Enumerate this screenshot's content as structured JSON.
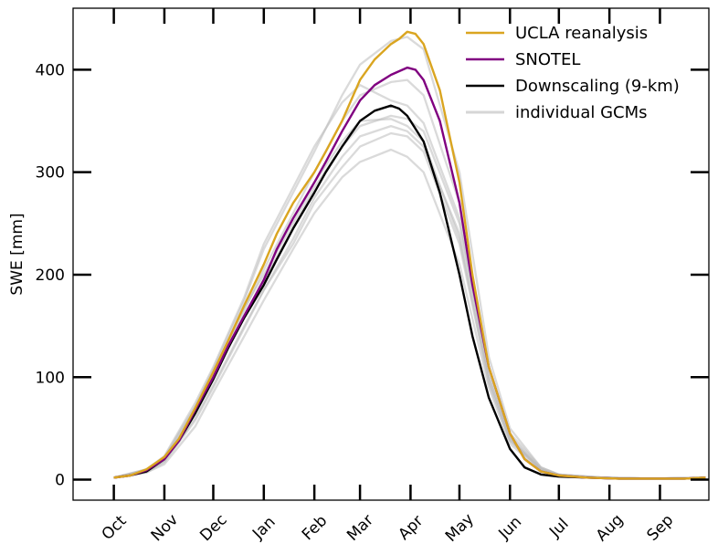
{
  "chart_data": {
    "type": "line",
    "title": "",
    "xlabel": "",
    "ylabel": "SWE [mm]",
    "ylim": [
      -20,
      460
    ],
    "yticks": [
      0,
      100,
      200,
      300,
      400
    ],
    "ytick_labels": [
      "0",
      "100",
      "200",
      "300",
      "400"
    ],
    "x_unit": "day of water year (Oct 1 = 0)",
    "xlim": [
      -25,
      365
    ],
    "xticks": [
      0,
      31,
      61,
      92,
      123,
      151,
      182,
      212,
      243,
      273,
      304,
      335
    ],
    "xtick_labels": [
      "Oct",
      "Nov",
      "Dec",
      "Jan",
      "Feb",
      "Mar",
      "Apr",
      "May",
      "Jun",
      "Jul",
      "Aug",
      "Sep"
    ],
    "grid": false,
    "legend_position": "top-right",
    "colors": {
      "ucla": "#DAA520",
      "snotel": "#800080",
      "downscaling": "#000000",
      "gcm": "#BBBBBB"
    },
    "series": [
      {
        "name": "UCLA reanalysis",
        "color_key": "ucla",
        "x": [
          0,
          10,
          20,
          31,
          40,
          50,
          61,
          70,
          80,
          92,
          100,
          110,
          123,
          130,
          140,
          151,
          160,
          170,
          175,
          180,
          185,
          190,
          200,
          212,
          220,
          230,
          243,
          252,
          262,
          273,
          290,
          310,
          330,
          350,
          363
        ],
        "values": [
          2,
          4,
          10,
          22,
          40,
          70,
          105,
          135,
          170,
          210,
          240,
          270,
          300,
          320,
          350,
          390,
          410,
          425,
          430,
          437,
          435,
          425,
          380,
          290,
          200,
          110,
          45,
          20,
          8,
          4,
          2,
          1,
          1,
          1,
          2
        ]
      },
      {
        "name": "SNOTEL",
        "color_key": "snotel",
        "x": [
          0,
          10,
          20,
          31,
          40,
          50,
          61,
          70,
          80,
          92,
          100,
          110,
          123,
          130,
          140,
          151,
          160,
          170,
          180,
          185,
          190,
          200,
          212,
          220,
          230,
          243,
          252,
          262,
          273,
          290,
          310,
          330,
          350,
          363
        ],
        "values": [
          2,
          4,
          9,
          20,
          38,
          68,
          100,
          130,
          160,
          195,
          225,
          255,
          290,
          310,
          340,
          370,
          385,
          395,
          402,
          400,
          390,
          350,
          270,
          190,
          110,
          45,
          20,
          8,
          4,
          2,
          1,
          1,
          1,
          2
        ]
      },
      {
        "name": "Downscaling (9-km)",
        "color_key": "downscaling",
        "x": [
          0,
          10,
          20,
          31,
          40,
          50,
          61,
          70,
          80,
          92,
          100,
          110,
          123,
          130,
          140,
          151,
          160,
          170,
          175,
          180,
          190,
          200,
          212,
          220,
          230,
          243,
          252,
          262,
          273,
          290,
          310,
          330,
          350,
          363
        ],
        "values": [
          2,
          4,
          8,
          20,
          38,
          65,
          98,
          128,
          158,
          190,
          215,
          245,
          280,
          300,
          325,
          350,
          360,
          365,
          362,
          355,
          330,
          280,
          200,
          140,
          80,
          30,
          12,
          5,
          3,
          2,
          1,
          1,
          1,
          2
        ]
      },
      {
        "name": "individual GCMs",
        "color_key": "gcm",
        "members": [
          {
            "x": [
              0,
              20,
              31,
              50,
              61,
              80,
              92,
              110,
              123,
              140,
              151,
              170,
              180,
              190,
              212,
              230,
              243,
              262,
              273,
              300,
              330,
              363
            ],
            "values": [
              2,
              10,
              22,
              72,
              108,
              175,
              225,
              280,
              320,
              375,
              405,
              428,
              432,
              420,
              300,
              120,
              50,
              12,
              5,
              2,
              1,
              2
            ]
          },
          {
            "x": [
              0,
              20,
              31,
              50,
              61,
              80,
              92,
              110,
              123,
              140,
              151,
              170,
              180,
              190,
              212,
              230,
              243,
              262,
              273,
              300,
              330,
              363
            ],
            "values": [
              2,
              9,
              20,
              66,
              100,
              165,
              205,
              260,
              300,
              350,
              375,
              388,
              390,
              375,
              270,
              110,
              45,
              12,
              5,
              2,
              1,
              2
            ]
          },
          {
            "x": [
              0,
              20,
              31,
              50,
              61,
              80,
              92,
              110,
              123,
              140,
              151,
              170,
              180,
              190,
              212,
              230,
              243,
              262,
              273,
              300,
              330,
              363
            ],
            "values": [
              2,
              7,
              15,
              52,
              85,
              140,
              175,
              225,
              260,
              295,
              310,
              322,
              315,
              300,
              210,
              90,
              35,
              9,
              4,
              2,
              1,
              2
            ]
          },
          {
            "x": [
              0,
              20,
              31,
              50,
              61,
              80,
              92,
              110,
              123,
              140,
              151,
              170,
              180,
              190,
              212,
              230,
              243,
              262,
              273,
              300,
              330,
              363
            ],
            "values": [
              2,
              8,
              18,
              60,
              92,
              150,
              185,
              235,
              275,
              315,
              335,
              345,
              340,
              325,
              240,
              100,
              40,
              10,
              4,
              2,
              1,
              2
            ]
          },
          {
            "x": [
              0,
              20,
              31,
              50,
              61,
              80,
              92,
              110,
              123,
              140,
              151,
              170,
              180,
              190,
              212,
              230,
              243,
              262,
              273,
              300,
              330,
              363
            ],
            "values": [
              2,
              9,
              21,
              70,
              104,
              168,
              200,
              250,
              290,
              330,
              350,
              352,
              345,
              330,
              235,
              95,
              38,
              10,
              4,
              2,
              1,
              2
            ]
          },
          {
            "x": [
              0,
              20,
              31,
              50,
              61,
              80,
              92,
              110,
              123,
              140,
              151,
              170,
              180,
              190,
              212,
              230,
              243,
              262,
              273,
              300,
              330,
              363
            ],
            "values": [
              2,
              8,
              19,
              64,
              98,
              160,
              195,
              245,
              285,
              325,
              345,
              355,
              352,
              340,
              250,
              105,
              42,
              11,
              5,
              2,
              1,
              2
            ]
          },
          {
            "x": [
              0,
              20,
              31,
              50,
              61,
              80,
              92,
              110,
              123,
              140,
              151,
              170,
              180,
              190,
              212,
              230,
              243,
              262,
              273,
              300,
              330,
              363
            ],
            "values": [
              2,
              10,
              23,
              75,
              110,
              178,
              230,
              285,
              325,
              368,
              385,
              370,
              365,
              348,
              255,
              100,
              40,
              10,
              4,
              2,
              1,
              2
            ]
          },
          {
            "x": [
              0,
              20,
              31,
              50,
              61,
              80,
              92,
              110,
              123,
              140,
              151,
              170,
              180,
              190,
              212,
              230,
              243,
              262,
              273,
              300,
              330,
              363
            ],
            "values": [
              2,
              7,
              17,
              58,
              90,
              148,
              185,
              230,
              270,
              305,
              325,
              338,
              335,
              320,
              230,
              95,
              38,
              10,
              4,
              2,
              1,
              2
            ]
          }
        ]
      }
    ],
    "legend": [
      {
        "label": "UCLA reanalysis",
        "color_key": "ucla"
      },
      {
        "label": "SNOTEL",
        "color_key": "snotel"
      },
      {
        "label": "Downscaling (9-km)",
        "color_key": "downscaling"
      },
      {
        "label": "individual GCMs",
        "color_key": "gcm"
      }
    ]
  }
}
